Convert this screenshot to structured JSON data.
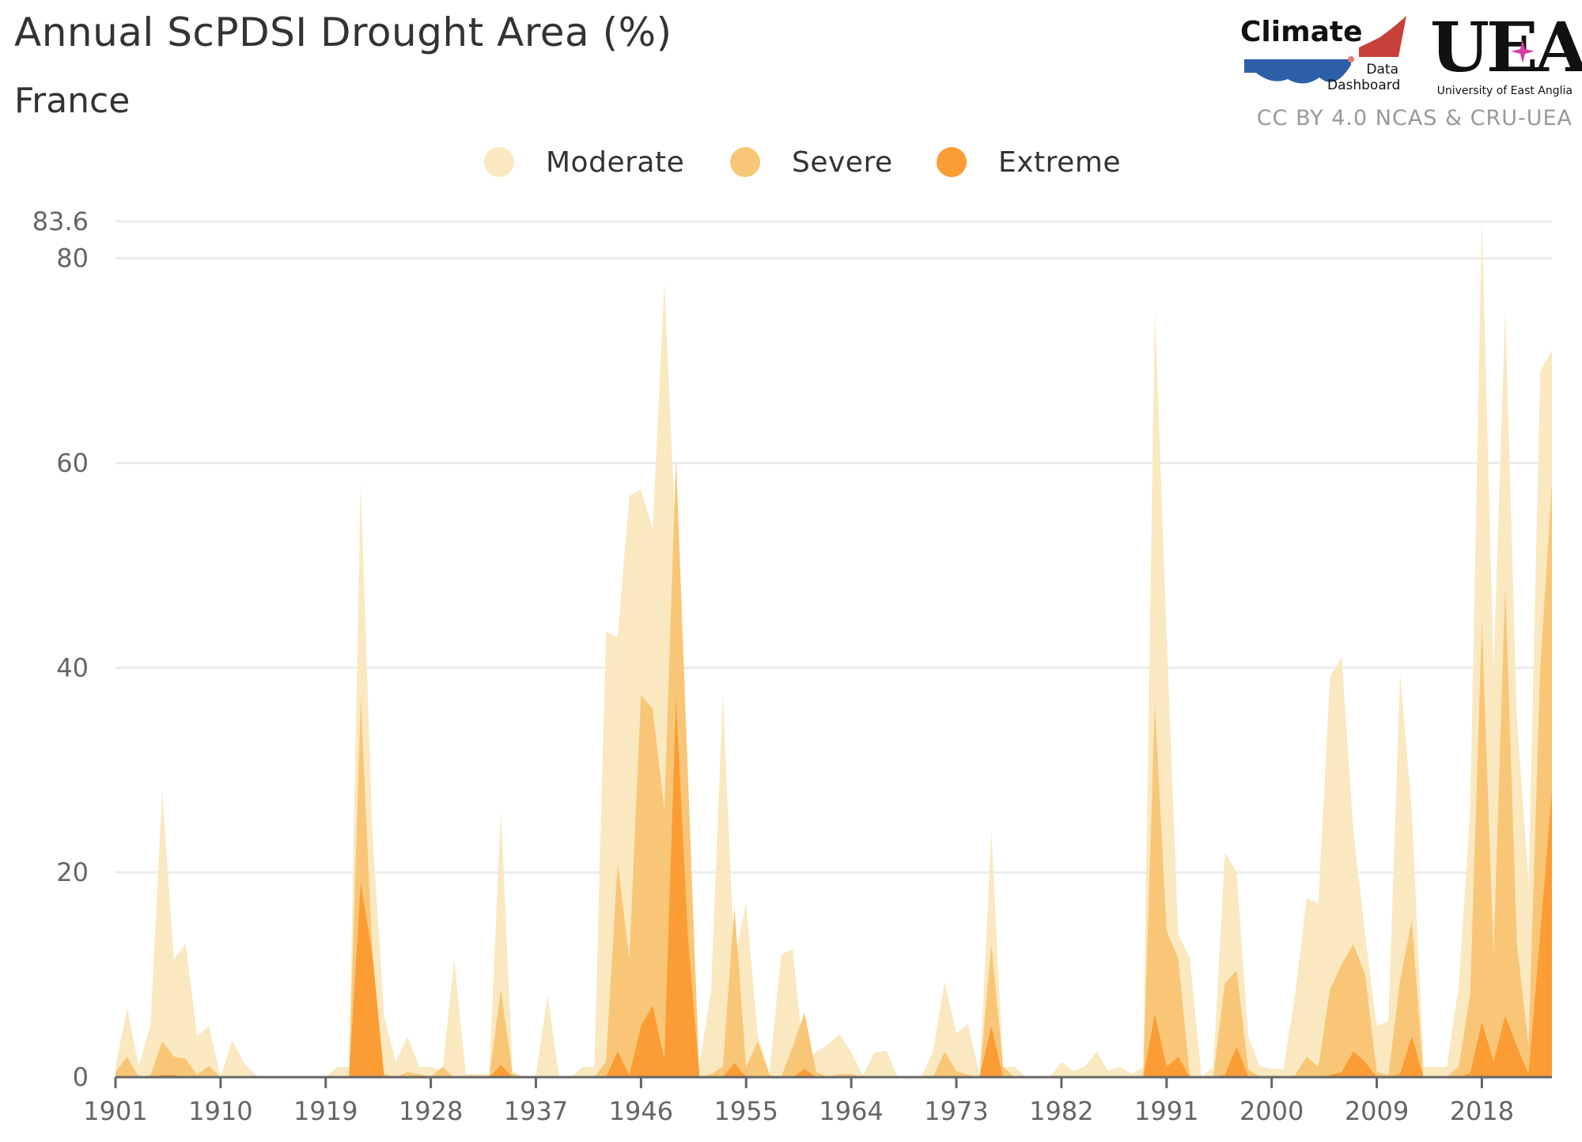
{
  "header": {
    "title": "Annual ScPDSI Drought Area (%)",
    "subtitle": "France",
    "credit": "CC BY 4.0 NCAS & CRU-UEA"
  },
  "logos": {
    "climate_word": "Climate",
    "climate_sub1": "Data",
    "climate_sub2": "Dashboard",
    "uea_word": "UEA",
    "uea_sub": "University of East Anglia"
  },
  "colors": {
    "moderate": "#fae8c0",
    "severe": "#f8c676",
    "extreme": "#fb9c34",
    "grid": "#ececec",
    "axis": "#666666"
  },
  "chart_data": {
    "type": "area",
    "title": "Annual ScPDSI Drought Area (%)",
    "subtitle": "France",
    "xlabel": "",
    "ylabel": "",
    "xlim": [
      1901,
      2024
    ],
    "ylim": [
      0,
      83.6
    ],
    "y_ticks": [
      0,
      20,
      40,
      60,
      80,
      83.6
    ],
    "y_tick_labels": [
      "0",
      "20",
      "40",
      "60",
      "80",
      "83.6"
    ],
    "x_ticks": [
      1901,
      1910,
      1919,
      1928,
      1937,
      1946,
      1955,
      1964,
      1973,
      1982,
      1991,
      2000,
      2009,
      2018
    ],
    "x_tick_labels": [
      "1901",
      "1910",
      "1919",
      "1928",
      "1937",
      "1946",
      "1955",
      "1964",
      "1973",
      "1982",
      "1991",
      "2000",
      "2009",
      "2018"
    ],
    "legend": [
      "Moderate",
      "Severe",
      "Extreme"
    ],
    "legend_position": "top-center",
    "grid": true,
    "x": [
      1901,
      1902,
      1903,
      1904,
      1905,
      1906,
      1907,
      1908,
      1909,
      1910,
      1911,
      1912,
      1913,
      1914,
      1915,
      1916,
      1917,
      1918,
      1919,
      1920,
      1921,
      1922,
      1923,
      1924,
      1925,
      1926,
      1927,
      1928,
      1929,
      1930,
      1931,
      1932,
      1933,
      1934,
      1935,
      1936,
      1937,
      1938,
      1939,
      1940,
      1941,
      1942,
      1943,
      1944,
      1945,
      1946,
      1947,
      1948,
      1949,
      1950,
      1951,
      1952,
      1953,
      1954,
      1955,
      1956,
      1957,
      1958,
      1959,
      1960,
      1961,
      1962,
      1963,
      1964,
      1965,
      1966,
      1967,
      1968,
      1969,
      1970,
      1971,
      1972,
      1973,
      1974,
      1975,
      1976,
      1977,
      1978,
      1979,
      1980,
      1981,
      1982,
      1983,
      1984,
      1985,
      1986,
      1987,
      1988,
      1989,
      1990,
      1991,
      1992,
      1993,
      1994,
      1995,
      1996,
      1997,
      1998,
      1999,
      2000,
      2001,
      2002,
      2003,
      2004,
      2005,
      2006,
      2007,
      2008,
      2009,
      2010,
      2011,
      2012,
      2013,
      2014,
      2015,
      2016,
      2017,
      2018,
      2019,
      2020,
      2021,
      2022,
      2023,
      2024
    ],
    "series": [
      {
        "name": "Moderate",
        "color": "#fae8c0",
        "values": [
          1,
          6.8,
          1,
          5.2,
          28,
          11.5,
          13,
          4,
          5,
          0,
          3.6,
          1.4,
          0.2,
          0,
          0,
          0,
          0,
          0,
          0,
          1,
          1,
          58,
          24,
          6,
          1.5,
          4,
          1,
          1,
          0.6,
          11.5,
          0.3,
          0.3,
          0.3,
          26,
          0.6,
          0,
          0.2,
          8,
          0,
          0,
          1,
          1,
          43.5,
          43,
          56.8,
          57.4,
          53.5,
          77.6,
          52,
          1,
          1.2,
          8.5,
          37.4,
          11.5,
          17,
          4,
          0.5,
          12,
          12.5,
          1,
          2.5,
          3.2,
          4.2,
          2.4,
          0.2,
          2.4,
          2.6,
          0,
          0,
          0,
          2.5,
          9.3,
          4.3,
          5.2,
          0.2,
          24,
          1,
          1,
          0,
          0,
          0,
          1.5,
          0.6,
          1,
          2.5,
          0.6,
          1,
          0.3,
          1,
          75,
          43.4,
          14,
          11.6,
          0,
          1,
          22,
          20,
          4,
          1,
          0.8,
          0.8,
          8,
          17.5,
          17,
          39.2,
          41,
          24,
          14,
          5,
          5.5,
          39.5,
          26,
          1,
          1,
          1,
          8.8,
          26,
          83.8,
          40,
          75,
          35,
          19,
          69,
          71
        ]
      },
      {
        "name": "Severe",
        "color": "#f8c676",
        "values": [
          0.5,
          2,
          0,
          0.2,
          3.5,
          2,
          1.8,
          0.2,
          1.1,
          0,
          0,
          0,
          0,
          0,
          0,
          0,
          0,
          0,
          0,
          0,
          0,
          37,
          12,
          0.3,
          0,
          0.5,
          0.3,
          0,
          1,
          0,
          0,
          0,
          0,
          8.6,
          0.3,
          0,
          0,
          0,
          0,
          0,
          0,
          0,
          1.5,
          21,
          11.5,
          37.3,
          36,
          26,
          60.5,
          30,
          0,
          0.3,
          1,
          16.6,
          1,
          3.5,
          0.2,
          0,
          3,
          6.3,
          0.5,
          0,
          0.3,
          0.3,
          0,
          0,
          0,
          0,
          0,
          0,
          0,
          2.5,
          0.6,
          0.2,
          0,
          13,
          1,
          0,
          0,
          0,
          0,
          0,
          0,
          0,
          0,
          0,
          0,
          0,
          0,
          36.4,
          14.3,
          11.6,
          0,
          0,
          0,
          9.2,
          10.4,
          0.8,
          0,
          0,
          0,
          0.2,
          2,
          1,
          8.6,
          11,
          13,
          10,
          0.5,
          0.2,
          9.5,
          15.3,
          0,
          0,
          0,
          1,
          8,
          44.5,
          12,
          48,
          13,
          3,
          40,
          58
        ]
      },
      {
        "name": "Extreme",
        "color": "#fb9c34",
        "values": [
          0,
          0,
          0,
          0,
          0.2,
          0.2,
          0,
          0,
          0,
          0,
          0,
          0,
          0,
          0,
          0,
          0,
          0,
          0,
          0,
          0,
          0,
          19,
          12,
          0,
          0,
          0,
          0,
          0,
          0,
          0,
          0,
          0,
          0,
          1.2,
          0,
          0,
          0,
          0,
          0,
          0,
          0,
          0,
          0,
          2.5,
          0.2,
          5,
          7,
          1.7,
          37,
          14,
          0,
          0,
          0,
          1.4,
          0,
          0,
          0,
          0,
          0,
          0.8,
          0,
          0,
          0,
          0,
          0,
          0,
          0,
          0,
          0,
          0,
          0,
          0,
          0,
          0,
          0,
          5,
          0,
          0,
          0,
          0,
          0,
          0,
          0,
          0,
          0,
          0,
          0,
          0,
          0,
          6.2,
          1,
          2,
          0,
          0,
          0,
          0.2,
          3,
          0,
          0,
          0,
          0,
          0,
          0,
          0,
          0.2,
          0.5,
          2.5,
          1.5,
          0,
          0,
          0.3,
          4,
          0,
          0,
          0,
          0,
          0.4,
          5.4,
          1.5,
          6,
          3,
          0.3,
          14,
          28
        ]
      }
    ]
  }
}
